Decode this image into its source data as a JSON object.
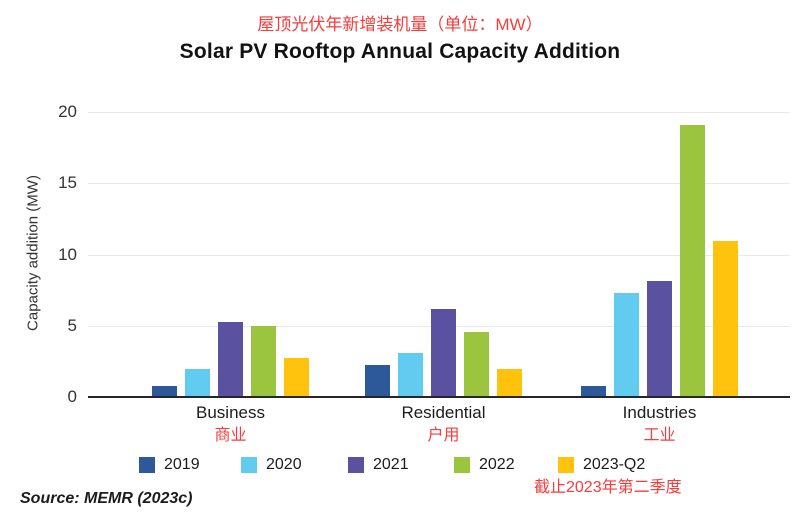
{
  "header": {
    "title_zh": "屋顶光伏年新增装机量（单位：MW）",
    "title_en": "Solar PV Rooftop Annual Capacity Addition"
  },
  "chart_data": {
    "type": "bar",
    "title": "Solar PV Rooftop Annual Capacity Addition",
    "title_zh": "屋顶光伏年新增装机量（单位：MW）",
    "ylabel": "Capacity addition (MW)",
    "xlabel": "",
    "ylim": [
      0,
      20
    ],
    "yticks": [
      0,
      5,
      10,
      15,
      20
    ],
    "grid": "horizontal-light",
    "legend_position": "bottom",
    "categories": [
      "Business",
      "Residential",
      "Industries"
    ],
    "categories_zh": [
      "商业",
      "户用",
      "工业"
    ],
    "series": [
      {
        "name": "2019",
        "color": "#2d5899",
        "values": [
          0.7,
          2.2,
          0.7
        ]
      },
      {
        "name": "2020",
        "color": "#62cbf0",
        "values": [
          1.9,
          3.0,
          7.2
        ]
      },
      {
        "name": "2021",
        "color": "#5b51a1",
        "values": [
          5.2,
          6.1,
          8.1
        ]
      },
      {
        "name": "2022",
        "color": "#9bc43f",
        "values": [
          4.9,
          4.5,
          19.0
        ]
      },
      {
        "name": "2023-Q2",
        "color": "#ffc20d",
        "values": [
          2.7,
          1.9,
          10.9
        ]
      }
    ],
    "legend_note_zh": "截止2023年第二季度"
  },
  "footer": {
    "source": "Source: MEMR (2023c)"
  },
  "colors": {
    "accent_red": "#f83b3b",
    "axis": "#262626",
    "gridline": "#e9e9e9"
  }
}
